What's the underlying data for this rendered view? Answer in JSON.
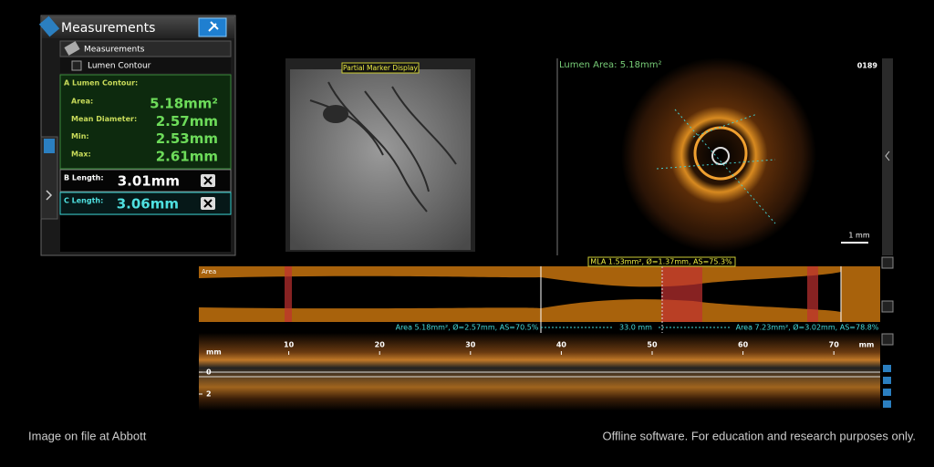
{
  "measurements_panel": {
    "title": "Measurements",
    "section": "Measurements",
    "lumen_contour": "Lumen Contour",
    "a_lumen_contour": {
      "heading": "A Lumen Contour:",
      "rows": [
        {
          "label": "Area:",
          "value": "5.18mm²"
        },
        {
          "label": "Mean Diameter:",
          "value": "2.57mm"
        },
        {
          "label": "Min:",
          "value": "2.53mm"
        },
        {
          "label": "Max:",
          "value": "2.61mm"
        }
      ]
    },
    "b_length": {
      "label": "B Length:",
      "value": "3.01mm"
    },
    "c_length": {
      "label": "C Length:",
      "value": "3.06mm"
    }
  },
  "angiogram": {
    "label": "Partial Marker Display"
  },
  "cross_section": {
    "lumen_area": "Lumen Area: 5.18mm²",
    "frame": "0189",
    "scale": "1 mm"
  },
  "lumen_profile": {
    "mla": "MLA 1.53mm², Ø=1.37mm, AS=75.3%",
    "label": "Area",
    "left_reference": "Area 5.18mm², Ø=2.57mm, AS=70.5%",
    "length": "33.0 mm",
    "right_reference": "Area 7.23mm², Ø=3.02mm, AS=78.8%"
  },
  "longitudinal_view": {
    "ticks": [
      10,
      20,
      30,
      40,
      50,
      60,
      70
    ],
    "unit": "mm",
    "depth_labels": [
      0,
      2
    ]
  },
  "footer": {
    "left": "Image on file at Abbott",
    "right": "Offline software. For education and research purposes only."
  }
}
